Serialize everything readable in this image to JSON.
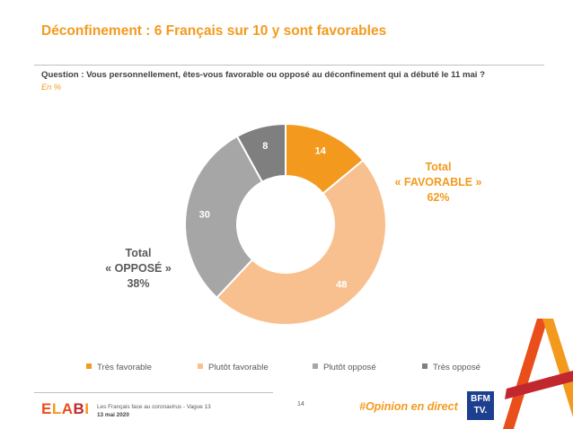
{
  "header": {
    "title": "Déconfinement : 6 Français sur 10 y sont favorables",
    "question": "Question : Vous personnellement, êtes-vous favorable ou opposé au déconfinement qui a débuté le 11 mai ?",
    "unit": "En %"
  },
  "totals": {
    "favorable": {
      "line1": "Total",
      "line2": "« FAVORABLE »",
      "line3": "62%"
    },
    "oppose": {
      "line1": "Total",
      "line2": "« OPPOSÉ »",
      "line3": "38%"
    }
  },
  "chart_data": {
    "type": "pie",
    "donut": true,
    "title": "",
    "categories": [
      "Très favorable",
      "Plutôt favorable",
      "Plutôt opposé",
      "Très opposé"
    ],
    "values": [
      14,
      48,
      30,
      8
    ],
    "colors": [
      "#f39a1e",
      "#f9c08f",
      "#a6a6a6",
      "#7f7f7f"
    ],
    "legend_position": "bottom"
  },
  "footer": {
    "logo": "ELABE",
    "survey": "Les Français face au coronavirus - Vague 13",
    "date": "13 mai 2020",
    "page_number": "14",
    "hashtag": "#Opinion en direct",
    "bfm_line1": "BFM",
    "bfm_line2": "TV."
  }
}
